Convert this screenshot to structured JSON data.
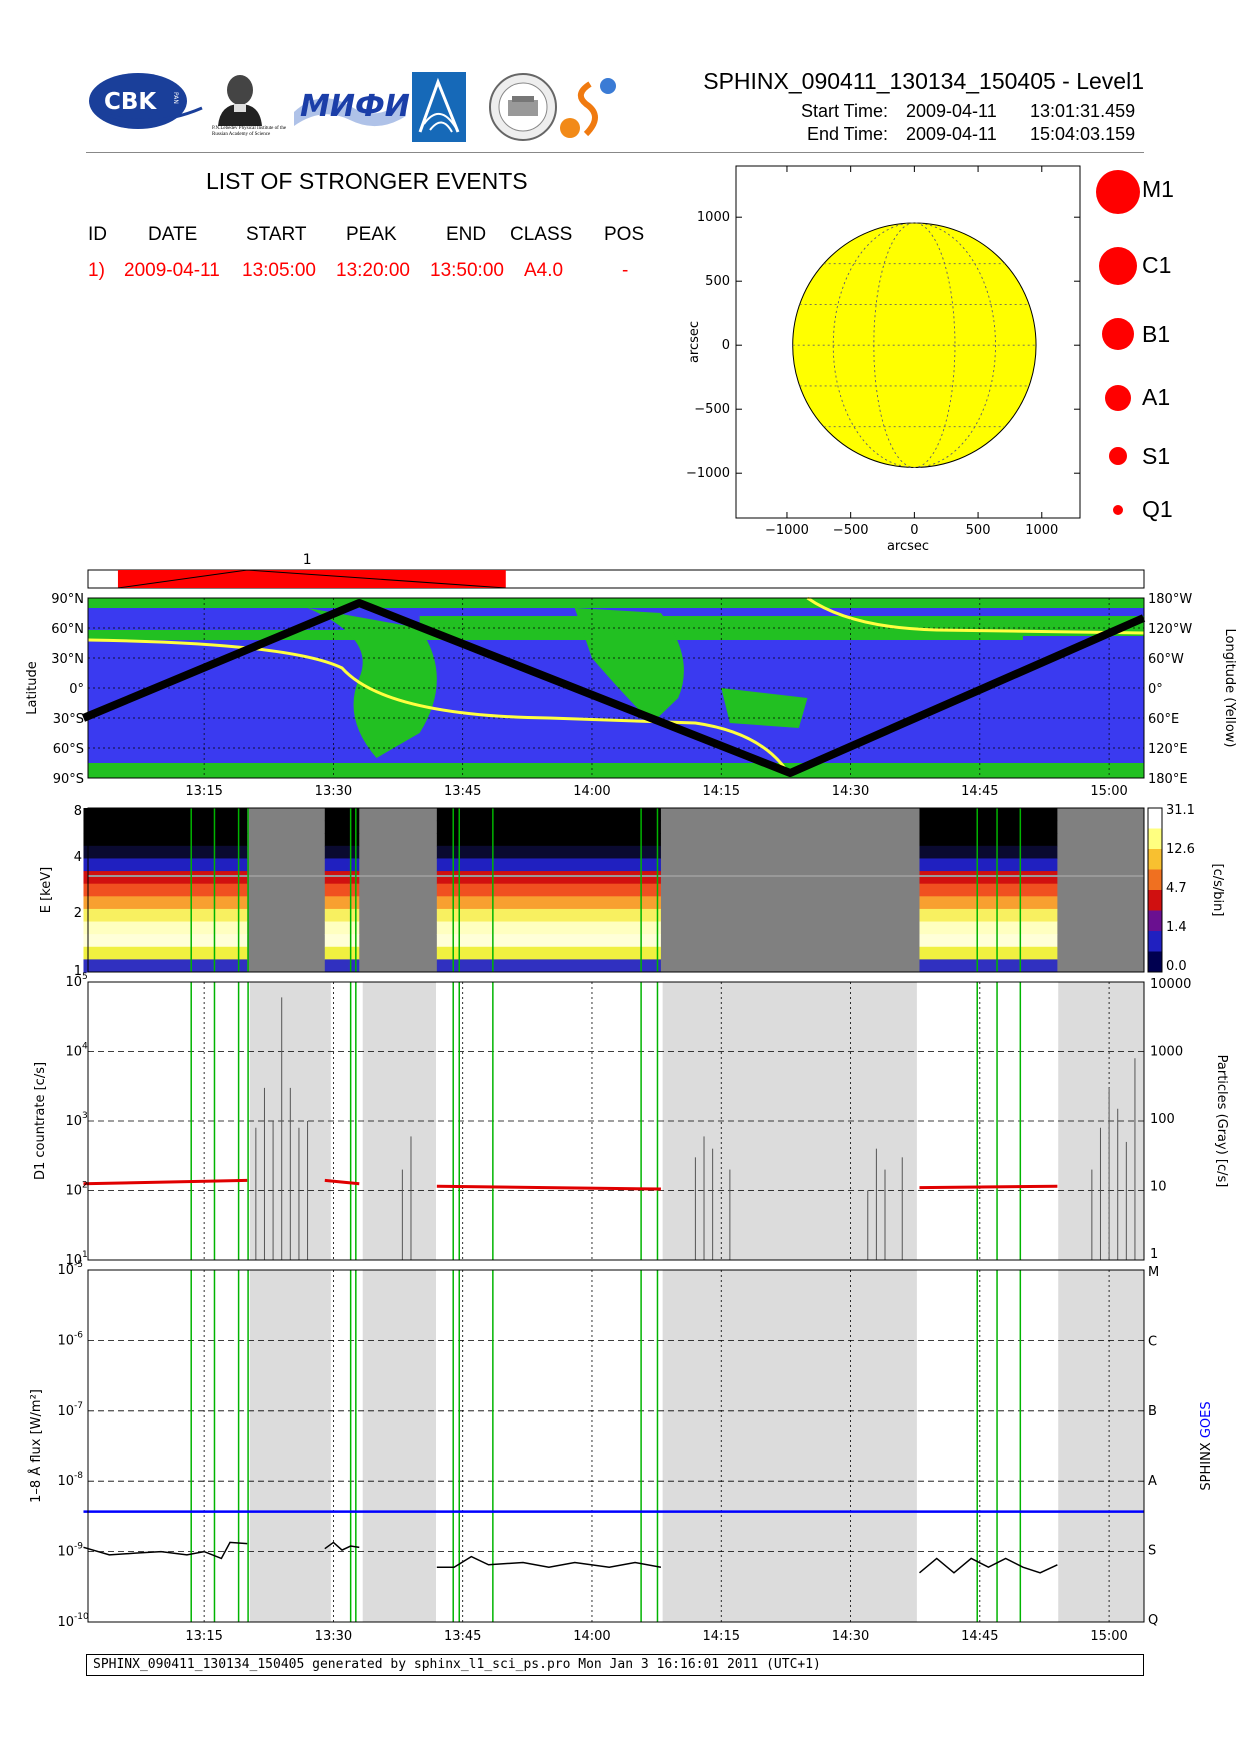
{
  "header": {
    "file_title": "SPHINX_090411_130134_150405 - Level1",
    "start_label": "Start Time:",
    "start_date": "2009-04-11",
    "start_time": "13:01:31.459",
    "end_label": "End Time:",
    "end_date": "2009-04-11",
    "end_time": "15:04:03.159",
    "logos": [
      "cbk-pan-logo",
      "lebedev-institute-logo",
      "mifi-logo",
      "wing-logo",
      "observatory-seal-logo",
      "sphinx-sun-logo"
    ],
    "logo_text": {
      "cbk": "CBK",
      "pan": "PAN",
      "lebedev": "P.N.Lebedev Physical Institute of the Russian Academy of Science",
      "mifi": "МИФИ"
    }
  },
  "events": {
    "title": "LIST OF STRONGER EVENTS",
    "columns": [
      "ID",
      "DATE",
      "START",
      "PEAK",
      "END",
      "CLASS",
      "POS"
    ],
    "rows": [
      {
        "id": "1)",
        "date": "2009-04-11",
        "start": "13:05:00",
        "peak": "13:20:00",
        "end": "13:50:00",
        "class": "A4.0",
        "pos": "-"
      }
    ]
  },
  "class_legend": [
    "M1",
    "C1",
    "B1",
    "A1",
    "S1",
    "Q1"
  ],
  "colors": {
    "event_red": "#ff0000",
    "sun_yellow": "#ffff00",
    "ocean_blue": "#3a3af0",
    "land_green": "#22c022",
    "goes_blue": "#0000ff",
    "flux_red": "#e00000",
    "shade_gray": "#dcdcdc",
    "marker_green": "#00b400"
  },
  "footer_text": "SPHINX_090411_130134_150405 generated by sphinx_l1_sci_ps.pro Mon Jan  3 16:16:01 2011 (UTC+1)",
  "chart_data": [
    {
      "type": "scatter",
      "panel": "sun-disk",
      "xlabel": "arcsec",
      "ylabel": "arcsec",
      "xlim": [
        -1400,
        1300
      ],
      "ylim": [
        -1350,
        1400
      ],
      "xticks": [
        -1000,
        -500,
        0,
        500,
        1000
      ],
      "yticks": [
        1000,
        500,
        0,
        -500,
        -1000
      ],
      "xtick_labels": [
        "−1000",
        "−500",
        "0",
        "500",
        "1000"
      ],
      "ytick_labels": [
        "1000",
        "500",
        "0",
        "−500",
        "−1000"
      ],
      "disk_radius": 955,
      "points": []
    },
    {
      "type": "bar",
      "panel": "event-bar",
      "label": "1",
      "event_start": "13:05",
      "event_peak": "13:20",
      "event_end": "13:50"
    },
    {
      "type": "line",
      "panel": "orbit-map",
      "ylabel_left": "Latitude",
      "ylabel_right": "Longitude (Yellow)",
      "lat_ticks": [
        "90°N",
        "60°N",
        "30°N",
        "0°",
        "30°S",
        "60°S",
        "90°S"
      ],
      "lon_ticks": [
        "180°W",
        "120°W",
        "60°W",
        "0°",
        "60°E",
        "120°E",
        "180°E"
      ],
      "x_ticks": [
        "13:15",
        "13:30",
        "13:45",
        "14:00",
        "14:15",
        "14:30",
        "14:45",
        "15:00"
      ],
      "series": [
        {
          "name": "Latitude",
          "x": [
            "13:01",
            "13:33",
            "14:23",
            "15:04"
          ],
          "y": [
            -30,
            85,
            -85,
            70
          ]
        }
      ]
    },
    {
      "type": "heatmap",
      "panel": "spectrogram",
      "ylabel": "E [keV]",
      "yticks": [
        "8",
        "4",
        "2",
        "1"
      ],
      "colorbar_label": "[c/s/bin]",
      "colorbar_ticks": [
        "31.1",
        "12.6",
        "4.7",
        "1.4",
        "0.0"
      ],
      "data_intervals": [
        [
          "13:01",
          "13:20"
        ],
        [
          "13:29",
          "13:33"
        ],
        [
          "13:42",
          "14:08"
        ],
        [
          "14:38",
          "14:54"
        ]
      ]
    },
    {
      "type": "line",
      "panel": "countrate",
      "ylabel_left": "D1 countrate [c/s]",
      "ylabel_right": "Particles (Gray) [c/s]",
      "y_log_range": [
        1,
        5
      ],
      "y_right_ticks": [
        "10000",
        "1000",
        "100",
        "10",
        "1"
      ],
      "series": [
        {
          "name": "D1",
          "segments": [
            {
              "x": [
                "13:01",
                "13:20"
              ],
              "y": [
                125,
                140
              ]
            },
            {
              "x": [
                "13:29",
                "13:33"
              ],
              "y": [
                140,
                125
              ]
            },
            {
              "x": [
                "13:42",
                "14:08"
              ],
              "y": [
                115,
                105
              ]
            },
            {
              "x": [
                "14:38",
                "14:54"
              ],
              "y": [
                110,
                115
              ]
            }
          ]
        }
      ]
    },
    {
      "type": "line",
      "panel": "flux",
      "ylabel_left": "1–8 Å flux [W/m²]",
      "ylabel_right_sphinx": "SPHINX",
      "ylabel_right_goes": "GOES",
      "y_log_range": [
        -10,
        -5
      ],
      "class_ticks": [
        "M",
        "C",
        "B",
        "A",
        "S",
        "Q"
      ],
      "x_ticks": [
        "13:15",
        "13:30",
        "13:45",
        "14:00",
        "14:15",
        "14:30",
        "14:45",
        "15:00"
      ],
      "series": [
        {
          "name": "GOES",
          "x": [
            "13:01",
            "15:04"
          ],
          "y": [
            3.7e-09,
            3.7e-09
          ]
        }
      ]
    }
  ]
}
